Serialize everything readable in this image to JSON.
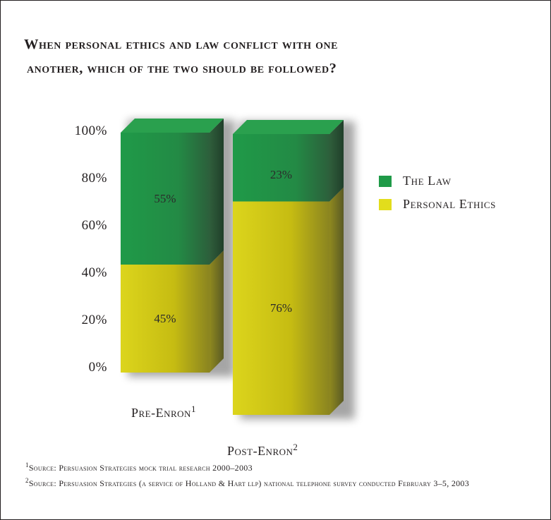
{
  "title_lines": [
    "When personal ethics and law conflict with one",
    "another, which of the two should be followed?"
  ],
  "chart_data": {
    "type": "bar",
    "stacked": true,
    "categories": [
      "Pre-Enron",
      "Post-Enron"
    ],
    "category_footnotes": [
      "1",
      "2"
    ],
    "series": [
      {
        "name": "Personal Ethics",
        "values": [
          45,
          76
        ],
        "color": "#e2dd1c",
        "labels": [
          "45%",
          "76%"
        ]
      },
      {
        "name": "The Law",
        "values": [
          55,
          23
        ],
        "color": "#1f9a48",
        "labels": [
          "55%",
          "23%"
        ]
      }
    ],
    "y_ticks": [
      "100%",
      "80%",
      "60%",
      "40%",
      "20%",
      "0%"
    ],
    "ylim": [
      0,
      100
    ],
    "legend_position": "right",
    "grid": false
  },
  "legend": [
    {
      "label": "The Law",
      "color": "#1f9a48"
    },
    {
      "label": "Personal Ethics",
      "color": "#e2dd1c"
    }
  ],
  "notes": [
    {
      "marker": "1",
      "text": "Source: Persuasion Strategies mock trial research 2000–2003"
    },
    {
      "marker": "2",
      "text": "Source: Persuasion Strategies (a service of Holland & Hart llp) national telephone survey conducted February 3–5, 2003"
    }
  ]
}
